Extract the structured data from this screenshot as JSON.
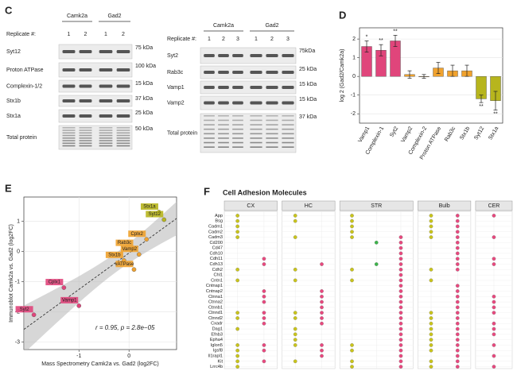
{
  "panel_c": {
    "label": "C",
    "left": {
      "groups": [
        "Camk2a",
        "Gad2"
      ],
      "replicate_label": "Replicate #:",
      "replicates": [
        [
          1,
          2
        ],
        [
          1,
          2
        ]
      ],
      "rows": [
        {
          "name": "Syt12",
          "marker": "75 kDa"
        },
        {
          "name": "Proton ATPase",
          "marker": "100 kDa"
        },
        {
          "name": "Complexin-1/2",
          "marker": "15 kDa"
        },
        {
          "name": "Stx1b",
          "marker": "37 kDa"
        },
        {
          "name": "Stx1a",
          "marker": "25 kDa"
        },
        {
          "name": "Total protein",
          "marker": "50 kDa"
        }
      ]
    },
    "right": {
      "groups": [
        "Camk2a",
        "Gad2"
      ],
      "replicate_label": "Replicate #:",
      "replicates": [
        [
          1,
          2,
          3
        ],
        [
          1,
          2,
          3
        ]
      ],
      "rows": [
        {
          "name": "Syt2",
          "marker": "75kDa"
        },
        {
          "name": "Rab3c",
          "marker": "25 kDa"
        },
        {
          "name": "Vamp1",
          "marker": "15 kDa"
        },
        {
          "name": "Vamp2",
          "marker": "15 kDa"
        },
        {
          "name": "Total protein",
          "marker": "37 kDa"
        }
      ]
    }
  },
  "chart_data": [
    {
      "type": "bar",
      "panel_label": "D",
      "ylabel": "log 2 (Gad2/Camk2a)",
      "categories": [
        "Vamp1",
        "Complexin-1",
        "Syt2",
        "Vamp2",
        "Complexin-2",
        "Proton ATPase",
        "Rab3c",
        "Stx1b",
        "Syt12",
        "Stx1a"
      ],
      "values": [
        1.6,
        1.4,
        1.9,
        0.1,
        0.0,
        0.45,
        0.3,
        0.3,
        -1.2,
        -1.3
      ],
      "errors": [
        0.3,
        0.3,
        0.3,
        0.2,
        0.1,
        0.3,
        0.3,
        0.3,
        0.2,
        0.5
      ],
      "colors": [
        "#e0457b",
        "#e0457b",
        "#e0457b",
        "#f0a22e",
        "#f0a22e",
        "#f0a22e",
        "#f0a22e",
        "#f0a22e",
        "#b7b51d",
        "#b7b51d"
      ],
      "significance": [
        "*",
        "**",
        "**",
        null,
        null,
        null,
        null,
        null,
        "**",
        "**"
      ],
      "ylim": [
        -2.5,
        2.6
      ],
      "yticks": [
        -2,
        -1,
        0,
        1,
        2
      ],
      "grid": true
    },
    {
      "type": "scatter",
      "panel_label": "E",
      "xlabel": "Mass Spectrometry Camk2a vs. Gad2 (log2FC)",
      "ylabel": "Immunoblot Camk2a vs. Gad2 (log2FC)",
      "annotation": "r = 0.95, p = 2.8e−05",
      "labels": [
        "Stx1a",
        "Syt12",
        "Cplx2",
        "Rab3c",
        "Vamp2",
        "Stx1b",
        "vATPase",
        "Cplx1",
        "Vamp1",
        "Syt2"
      ],
      "x": [
        0.6,
        0.7,
        0.35,
        0.1,
        0.2,
        -0.1,
        0.1,
        -1.3,
        -1.0,
        -1.9
      ],
      "values": [
        1.3,
        1.05,
        0.4,
        0.1,
        -0.1,
        -0.3,
        -0.6,
        -1.2,
        -1.8,
        -2.1
      ],
      "colors": [
        "#b7b51d",
        "#b7b51d",
        "#f0a22e",
        "#f0a22e",
        "#f0a22e",
        "#f0a22e",
        "#f0a22e",
        "#e0457b",
        "#e0457b",
        "#e0457b"
      ],
      "xlim": [
        -2.1,
        0.95
      ],
      "ylim": [
        -3.25,
        1.8
      ],
      "xticks": [
        -1,
        0
      ],
      "yticks": [
        -3,
        -2,
        -1,
        0,
        1
      ],
      "grid": true,
      "fit_line": true,
      "confidence_band": true
    },
    {
      "type": "dotplot",
      "panel_label": "F",
      "title": "Cell Adhesion Molecules",
      "genes": [
        "App",
        "Bsg",
        "Cadm1",
        "Cadm2",
        "Cadm3",
        "Cd200",
        "Cd47",
        "Cdh10",
        "Cdh11",
        "Cdh13",
        "Cdh2",
        "Chl1",
        "Cntn1",
        "Cntnap1",
        "Cntnap2",
        "Ctnna1",
        "Ctnna2",
        "Ctnnb1",
        "Ctnnd1",
        "Ctnnd2",
        "Cxadr",
        "Dag1",
        "Efnb3",
        "Epha4",
        "Iglon5",
        "Igsf8",
        "Il1rapl1",
        "Kit",
        "Lrrc4b"
      ],
      "facets": [
        {
          "name": "CX",
          "series": [
            {
              "color": "#c9c41a",
              "values": [
                1,
                1,
                1,
                1,
                1,
                0,
                0,
                0,
                0,
                0,
                1,
                0,
                1,
                0,
                0,
                0,
                0,
                0,
                1,
                1,
                0,
                1,
                0,
                0,
                1,
                1,
                1,
                1,
                1
              ]
            },
            {
              "color": "#e8487e",
              "values": [
                0,
                0,
                0,
                0,
                0,
                0,
                0,
                0,
                1,
                1,
                0,
                0,
                0,
                0,
                1,
                1,
                1,
                0,
                1,
                1,
                1,
                0,
                0,
                0,
                1,
                1,
                0,
                1,
                0
              ]
            }
          ]
        },
        {
          "name": "HC",
          "series": [
            {
              "color": "#c9c41a",
              "values": [
                1,
                1,
                0,
                0,
                1,
                0,
                0,
                0,
                0,
                0,
                1,
                0,
                1,
                0,
                0,
                0,
                0,
                0,
                1,
                1,
                0,
                1,
                1,
                1,
                1,
                0,
                0,
                1,
                0
              ]
            },
            {
              "color": "#e8487e",
              "values": [
                0,
                0,
                0,
                0,
                0,
                0,
                0,
                0,
                0,
                1,
                0,
                0,
                0,
                0,
                1,
                1,
                1,
                1,
                1,
                1,
                1,
                0,
                0,
                0,
                1,
                1,
                1,
                0,
                0
              ]
            }
          ]
        },
        {
          "name": "STR",
          "series": [
            {
              "color": "#c9c41a",
              "values": [
                1,
                1,
                1,
                1,
                1,
                0,
                0,
                0,
                0,
                0,
                1,
                0,
                1,
                0,
                0,
                0,
                0,
                0,
                0,
                0,
                0,
                0,
                0,
                0,
                1,
                1,
                0,
                1,
                1
              ]
            },
            {
              "color": "#3cb34a",
              "values": [
                0,
                0,
                0,
                0,
                0,
                1,
                0,
                0,
                0,
                1,
                0,
                0,
                0,
                0,
                0,
                0,
                0,
                0,
                0,
                0,
                0,
                0,
                0,
                0,
                0,
                0,
                0,
                0,
                0
              ]
            },
            {
              "color": "#e8487e",
              "values": [
                0,
                0,
                0,
                0,
                1,
                1,
                1,
                1,
                1,
                1,
                1,
                1,
                1,
                1,
                1,
                1,
                1,
                1,
                1,
                1,
                1,
                1,
                1,
                1,
                1,
                1,
                1,
                1,
                1
              ]
            }
          ]
        },
        {
          "name": "Bulb",
          "series": [
            {
              "color": "#c9c41a",
              "values": [
                1,
                1,
                1,
                1,
                1,
                0,
                0,
                0,
                0,
                0,
                1,
                0,
                1,
                0,
                0,
                0,
                0,
                0,
                1,
                1,
                1,
                1,
                1,
                1,
                1,
                1,
                0,
                1,
                1
              ]
            },
            {
              "color": "#e8487e",
              "values": [
                1,
                1,
                1,
                1,
                1,
                1,
                1,
                1,
                1,
                1,
                1,
                0,
                0,
                1,
                1,
                1,
                1,
                1,
                1,
                1,
                1,
                1,
                1,
                1,
                1,
                1,
                1,
                1,
                1
              ]
            }
          ]
        },
        {
          "name": "CER",
          "series": [
            {
              "color": "#e8487e",
              "values": [
                1,
                0,
                0,
                0,
                1,
                0,
                0,
                0,
                1,
                1,
                0,
                0,
                0,
                0,
                0,
                1,
                1,
                1,
                1,
                0,
                1,
                1,
                1,
                0,
                1,
                0,
                1,
                0,
                1
              ]
            }
          ]
        }
      ]
    }
  ]
}
